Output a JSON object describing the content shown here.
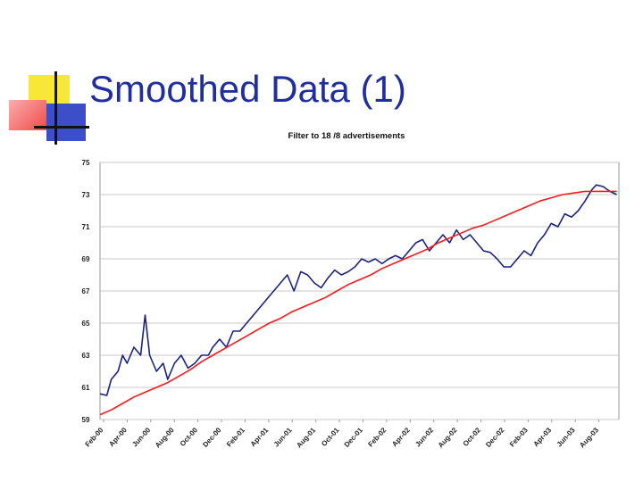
{
  "slide": {
    "title": "Smoothed Data (1)"
  },
  "chart_data": {
    "type": "line",
    "title": "Filter to 18 /8 advertisements",
    "xlabel": "",
    "ylabel": "",
    "ylim": [
      59,
      75
    ],
    "yticks": [
      59,
      61,
      63,
      65,
      67,
      69,
      71,
      73,
      75
    ],
    "categories": [
      "Feb-00",
      "Apr-00",
      "Jun-00",
      "Aug-00",
      "Oct-00",
      "Dec-00",
      "Feb-01",
      "Apr-01",
      "Jun-01",
      "Aug-01",
      "Oct-01",
      "Dec-01",
      "Feb-02",
      "Apr-02",
      "Jun-02",
      "Aug-02",
      "Oct-02",
      "Dec-02",
      "Feb-03",
      "Apr-03",
      "Jun-03",
      "Aug-03"
    ],
    "x_range": [
      0,
      23
    ],
    "grid": true,
    "colors": {
      "series_blue": "#1a237e",
      "series_red": "#ff1a1a"
    },
    "series": [
      {
        "name": "blue",
        "color": "#1a237e",
        "points": [
          [
            0.0,
            60.6
          ],
          [
            0.3,
            60.5
          ],
          [
            0.5,
            61.5
          ],
          [
            0.8,
            62.0
          ],
          [
            1.0,
            63.0
          ],
          [
            1.2,
            62.5
          ],
          [
            1.5,
            63.5
          ],
          [
            1.8,
            63.0
          ],
          [
            2.0,
            65.5
          ],
          [
            2.2,
            63.0
          ],
          [
            2.5,
            62.0
          ],
          [
            2.8,
            62.5
          ],
          [
            3.0,
            61.5
          ],
          [
            3.3,
            62.5
          ],
          [
            3.6,
            63.0
          ],
          [
            3.9,
            62.2
          ],
          [
            4.2,
            62.5
          ],
          [
            4.5,
            63.0
          ],
          [
            4.8,
            63.0
          ],
          [
            5.0,
            63.5
          ],
          [
            5.3,
            64.0
          ],
          [
            5.6,
            63.5
          ],
          [
            5.9,
            64.5
          ],
          [
            6.2,
            64.5
          ],
          [
            6.5,
            65.0
          ],
          [
            6.8,
            65.5
          ],
          [
            7.1,
            66.0
          ],
          [
            7.4,
            66.5
          ],
          [
            7.7,
            67.0
          ],
          [
            8.0,
            67.5
          ],
          [
            8.3,
            68.0
          ],
          [
            8.6,
            67.0
          ],
          [
            8.9,
            68.2
          ],
          [
            9.2,
            68.0
          ],
          [
            9.5,
            67.5
          ],
          [
            9.8,
            67.2
          ],
          [
            10.1,
            67.8
          ],
          [
            10.4,
            68.3
          ],
          [
            10.7,
            68.0
          ],
          [
            11.0,
            68.2
          ],
          [
            11.3,
            68.5
          ],
          [
            11.6,
            69.0
          ],
          [
            11.9,
            68.8
          ],
          [
            12.2,
            69.0
          ],
          [
            12.5,
            68.7
          ],
          [
            12.8,
            69.0
          ],
          [
            13.1,
            69.2
          ],
          [
            13.4,
            69.0
          ],
          [
            13.7,
            69.5
          ],
          [
            14.0,
            70.0
          ],
          [
            14.3,
            70.2
          ],
          [
            14.6,
            69.5
          ],
          [
            14.9,
            70.0
          ],
          [
            15.2,
            70.5
          ],
          [
            15.5,
            70.0
          ],
          [
            15.8,
            70.8
          ],
          [
            16.1,
            70.2
          ],
          [
            16.4,
            70.5
          ],
          [
            16.7,
            70.0
          ],
          [
            17.0,
            69.5
          ],
          [
            17.3,
            69.4
          ],
          [
            17.6,
            69.0
          ],
          [
            17.9,
            68.5
          ],
          [
            18.2,
            68.5
          ],
          [
            18.5,
            69.0
          ],
          [
            18.8,
            69.5
          ],
          [
            19.1,
            69.2
          ],
          [
            19.4,
            70.0
          ],
          [
            19.7,
            70.5
          ],
          [
            20.0,
            71.2
          ],
          [
            20.3,
            71.0
          ],
          [
            20.6,
            71.8
          ],
          [
            20.9,
            71.6
          ],
          [
            21.2,
            72.0
          ],
          [
            21.5,
            72.6
          ],
          [
            21.8,
            73.3
          ],
          [
            22.0,
            73.6
          ],
          [
            22.3,
            73.5
          ],
          [
            22.6,
            73.2
          ],
          [
            22.9,
            73.0
          ]
        ]
      },
      {
        "name": "red",
        "color": "#ff1a1a",
        "points": [
          [
            0.0,
            59.3
          ],
          [
            0.5,
            59.6
          ],
          [
            1.0,
            60.0
          ],
          [
            1.5,
            60.4
          ],
          [
            2.0,
            60.7
          ],
          [
            2.5,
            61.0
          ],
          [
            3.0,
            61.3
          ],
          [
            3.5,
            61.7
          ],
          [
            4.0,
            62.1
          ],
          [
            4.5,
            62.6
          ],
          [
            5.0,
            63.0
          ],
          [
            5.5,
            63.4
          ],
          [
            6.0,
            63.8
          ],
          [
            6.5,
            64.2
          ],
          [
            7.0,
            64.6
          ],
          [
            7.5,
            65.0
          ],
          [
            8.0,
            65.3
          ],
          [
            8.5,
            65.7
          ],
          [
            9.0,
            66.0
          ],
          [
            9.5,
            66.3
          ],
          [
            10.0,
            66.6
          ],
          [
            10.5,
            67.0
          ],
          [
            11.0,
            67.4
          ],
          [
            11.5,
            67.7
          ],
          [
            12.0,
            68.0
          ],
          [
            12.5,
            68.4
          ],
          [
            13.0,
            68.7
          ],
          [
            13.5,
            69.0
          ],
          [
            14.0,
            69.3
          ],
          [
            14.5,
            69.6
          ],
          [
            15.0,
            70.0
          ],
          [
            15.5,
            70.3
          ],
          [
            16.0,
            70.6
          ],
          [
            16.5,
            70.9
          ],
          [
            17.0,
            71.1
          ],
          [
            17.5,
            71.4
          ],
          [
            18.0,
            71.7
          ],
          [
            18.5,
            72.0
          ],
          [
            19.0,
            72.3
          ],
          [
            19.5,
            72.6
          ],
          [
            20.0,
            72.8
          ],
          [
            20.5,
            73.0
          ],
          [
            21.0,
            73.1
          ],
          [
            21.5,
            73.2
          ],
          [
            22.0,
            73.2
          ],
          [
            22.5,
            73.2
          ],
          [
            22.9,
            73.2
          ]
        ]
      }
    ]
  }
}
